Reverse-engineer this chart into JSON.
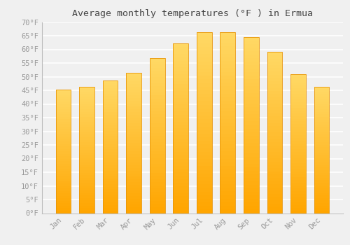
{
  "title": "Average monthly temperatures (°F ) in Ermua",
  "months": [
    "Jan",
    "Feb",
    "Mar",
    "Apr",
    "May",
    "Jun",
    "Jul",
    "Aug",
    "Sep",
    "Oct",
    "Nov",
    "Dec"
  ],
  "values": [
    45.3,
    46.4,
    48.7,
    51.4,
    56.7,
    62.1,
    66.2,
    66.4,
    64.6,
    59.0,
    50.9,
    46.4
  ],
  "bar_color_bottom": "#FFA500",
  "bar_color_top": "#FFD966",
  "bar_edge_color": "#E8960A",
  "ylim": [
    0,
    70
  ],
  "ytick_step": 5,
  "background_color": "#f0f0f0",
  "grid_color": "#ffffff",
  "tick_label_color": "#999999",
  "title_color": "#444444",
  "title_fontsize": 9.5,
  "tick_fontsize": 7.5,
  "bar_width": 0.65
}
